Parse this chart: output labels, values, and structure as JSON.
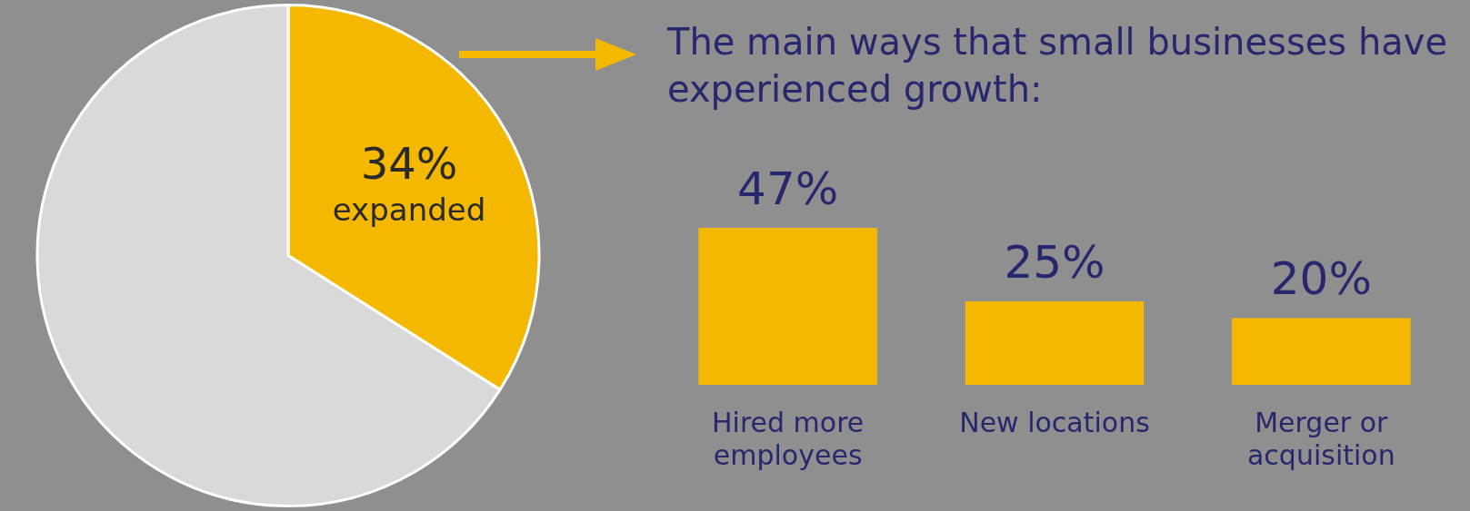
{
  "chart_data": [
    {
      "type": "pie",
      "categories": [
        "expanded",
        null
      ],
      "values": [
        34,
        66
      ],
      "colors": [
        "#f5b800",
        "#d9d9d9"
      ],
      "value_labels": [
        "34%",
        null
      ],
      "legend": false
    },
    {
      "type": "bar",
      "title": "The main ways that small businesses have experienced growth:",
      "categories": [
        "Hired more employees",
        "New locations",
        "Merger or acquisition"
      ],
      "values": [
        47,
        25,
        20
      ],
      "color": "#f5b800",
      "value_labels": [
        "47%",
        "25%",
        "20%"
      ],
      "legend": false,
      "grid": false
    }
  ]
}
